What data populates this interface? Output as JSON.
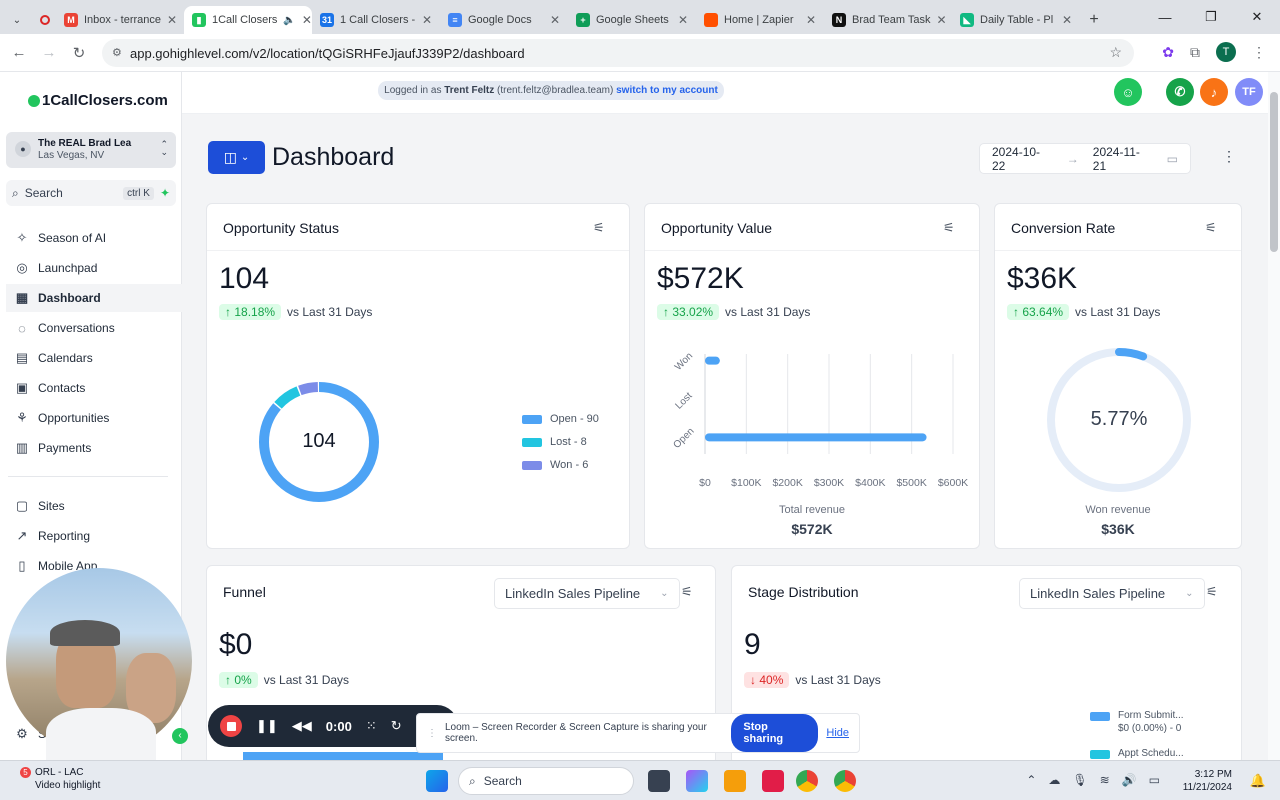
{
  "browser": {
    "tabs": [
      {
        "title": "Inbox - terrance",
        "icon": "gmail-icon",
        "active": false
      },
      {
        "title": "1Call Closers",
        "icon": "page-icon",
        "active": true
      },
      {
        "title": "1 Call Closers -",
        "icon": "calendar-icon",
        "active": false
      },
      {
        "title": "Google Docs",
        "icon": "docs-icon",
        "active": false
      },
      {
        "title": "Google Sheets",
        "icon": "sheets-icon",
        "active": false
      },
      {
        "title": "Home | Zapier",
        "icon": "zapier-icon",
        "active": false
      },
      {
        "title": "Brad Team Task",
        "icon": "notion-icon",
        "active": false
      },
      {
        "title": "Daily Table - Pl",
        "icon": "sheet-icon",
        "active": false
      }
    ],
    "url": "app.gohighlevel.com/v2/location/tQGiSRHFeJjaufJ339P2/dashboard",
    "profile_initial": "T"
  },
  "sidebar": {
    "logo": "1CallClosers.com",
    "location_name": "The REAL Brad Lea",
    "location_city": "Las Vegas, NV",
    "search_placeholder": "Search",
    "search_shortcut": "ctrl K",
    "items": [
      {
        "label": "Season of AI",
        "icon": "sparkle-icon"
      },
      {
        "label": "Launchpad",
        "icon": "rocket-icon"
      },
      {
        "label": "Dashboard",
        "icon": "grid-icon",
        "active": true
      },
      {
        "label": "Conversations",
        "icon": "chat-icon"
      },
      {
        "label": "Calendars",
        "icon": "calendar-icon"
      },
      {
        "label": "Contacts",
        "icon": "contacts-icon"
      },
      {
        "label": "Opportunities",
        "icon": "opportunity-icon"
      },
      {
        "label": "Payments",
        "icon": "payments-icon"
      },
      {
        "label": "Sites",
        "icon": "sites-icon"
      },
      {
        "label": "Reporting",
        "icon": "reporting-icon"
      },
      {
        "label": "Mobile App",
        "icon": "mobile-icon"
      }
    ],
    "settings_fragment": "S"
  },
  "topbar": {
    "logged_in_prefix": "Logged in as",
    "user_name": "Trent Feltz",
    "user_email": "(trent.feltz@bradlea.team)",
    "switch_label": "switch to my account",
    "avatar_initials": "TF"
  },
  "dashboard": {
    "title": "Dashboard",
    "date_from": "2024-10-22",
    "date_to": "2024-11-21"
  },
  "opportunity_status": {
    "title": "Opportunity Status",
    "value": "104",
    "change": "18.18%",
    "compare": "vs Last 31 Days",
    "center_label": "104",
    "legend": [
      "Open - 90",
      "Lost - 8",
      "Won - 6"
    ]
  },
  "opportunity_value": {
    "title": "Opportunity Value",
    "value": "$572K",
    "change": "33.02%",
    "compare": "vs Last 31 Days",
    "footer_label": "Total revenue",
    "footer_value": "$572K"
  },
  "conversion_rate": {
    "title": "Conversion Rate",
    "value": "$36K",
    "change": "63.64%",
    "compare": "vs Last 31 Days",
    "center_label": "5.77%",
    "footer_label": "Won revenue",
    "footer_value": "$36K"
  },
  "funnel": {
    "title": "Funnel",
    "pipeline": "LinkedIn Sales Pipeline",
    "value": "$0",
    "change": "0%",
    "compare": "vs Last 31 Days"
  },
  "stage_distribution": {
    "title": "Stage Distribution",
    "pipeline": "LinkedIn Sales Pipeline",
    "value": "9",
    "change": "40%",
    "compare": "vs Last 31 Days",
    "legend": [
      {
        "name": "Form Submit...",
        "detail": "$0 (0.00%) - 0"
      },
      {
        "name": "Appt Schedu...",
        "detail": ""
      }
    ]
  },
  "chart_data": [
    {
      "type": "pie",
      "title": "Opportunity Status",
      "categories": [
        "Open",
        "Lost",
        "Won"
      ],
      "values": [
        90,
        8,
        6
      ],
      "colors": [
        "#4da3f5",
        "#22c5e0",
        "#7c8ce8"
      ]
    },
    {
      "type": "bar",
      "title": "Opportunity Value",
      "orientation": "horizontal",
      "categories": [
        "Won",
        "Lost",
        "Open"
      ],
      "values": [
        36000,
        0,
        536000
      ],
      "xlim": [
        0,
        600000
      ],
      "x_ticks": [
        "$0",
        "$100K",
        "$200K",
        "$300K",
        "$400K",
        "$500K",
        "$600K"
      ],
      "xlabel": "Total revenue",
      "color": "#4da3f5"
    },
    {
      "type": "pie",
      "title": "Conversion Rate",
      "categories": [
        "Won",
        "Other"
      ],
      "values": [
        5.77,
        94.23
      ],
      "colors": [
        "#4da3f5",
        "#e5edf8"
      ]
    }
  ],
  "loom": {
    "timer": "0:00",
    "message": "Loom – Screen Recorder & Screen Capture is sharing your screen.",
    "stop_label": "Stop sharing",
    "hide_label": "Hide"
  },
  "taskbar": {
    "weather_title": "ORL - LAC",
    "weather_sub": "Video highlight",
    "weather_badge": "5",
    "search_placeholder": "Search",
    "time": "3:12 PM",
    "date": "11/21/2024"
  },
  "colors": {
    "accent": "#1d4ed8",
    "success": "#16a34a",
    "danger": "#dc2626"
  }
}
